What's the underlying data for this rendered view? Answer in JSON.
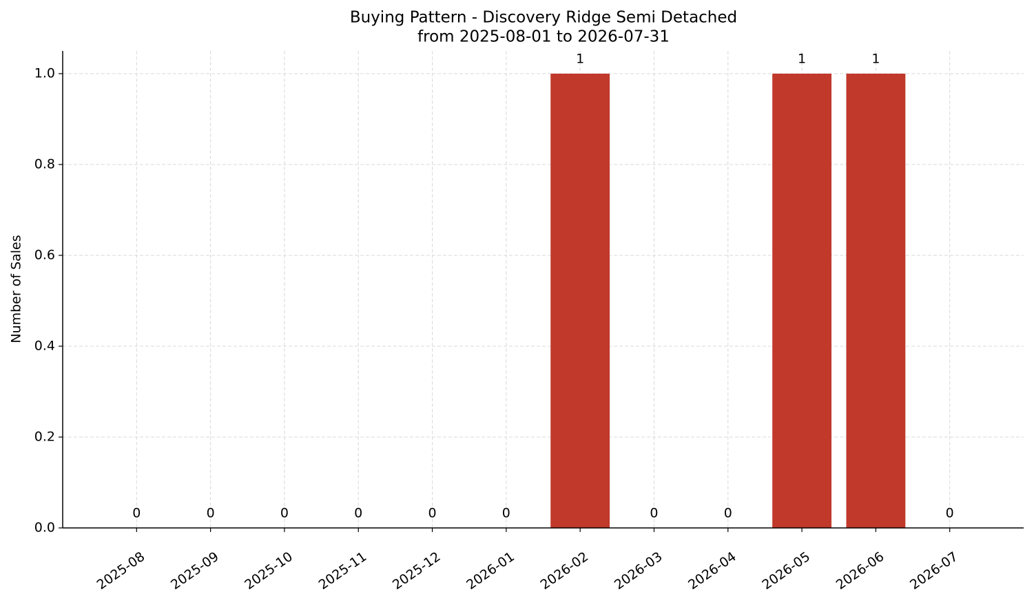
{
  "chart_data": {
    "type": "bar",
    "title": "Buying Pattern - Discovery Ridge Semi Detached",
    "subtitle": "from 2025-08-01 to 2026-07-31",
    "y_label": "Number of Sales",
    "categories": [
      "2025-08",
      "2025-09",
      "2025-10",
      "2025-11",
      "2025-12",
      "2026-01",
      "2026-02",
      "2026-03",
      "2026-04",
      "2026-05",
      "2026-06",
      "2026-07"
    ],
    "values": [
      0,
      0,
      0,
      0,
      0,
      0,
      1,
      0,
      0,
      1,
      1,
      0
    ],
    "color": "#c0392b",
    "ylim": [
      0,
      1.05
    ],
    "yticks": [
      {
        "value": 0,
        "label": "0.0"
      },
      0.2,
      0.4,
      0.6,
      0.8,
      {
        "value": 1,
        "label": "1.0"
      }
    ],
    "grid": true
  }
}
